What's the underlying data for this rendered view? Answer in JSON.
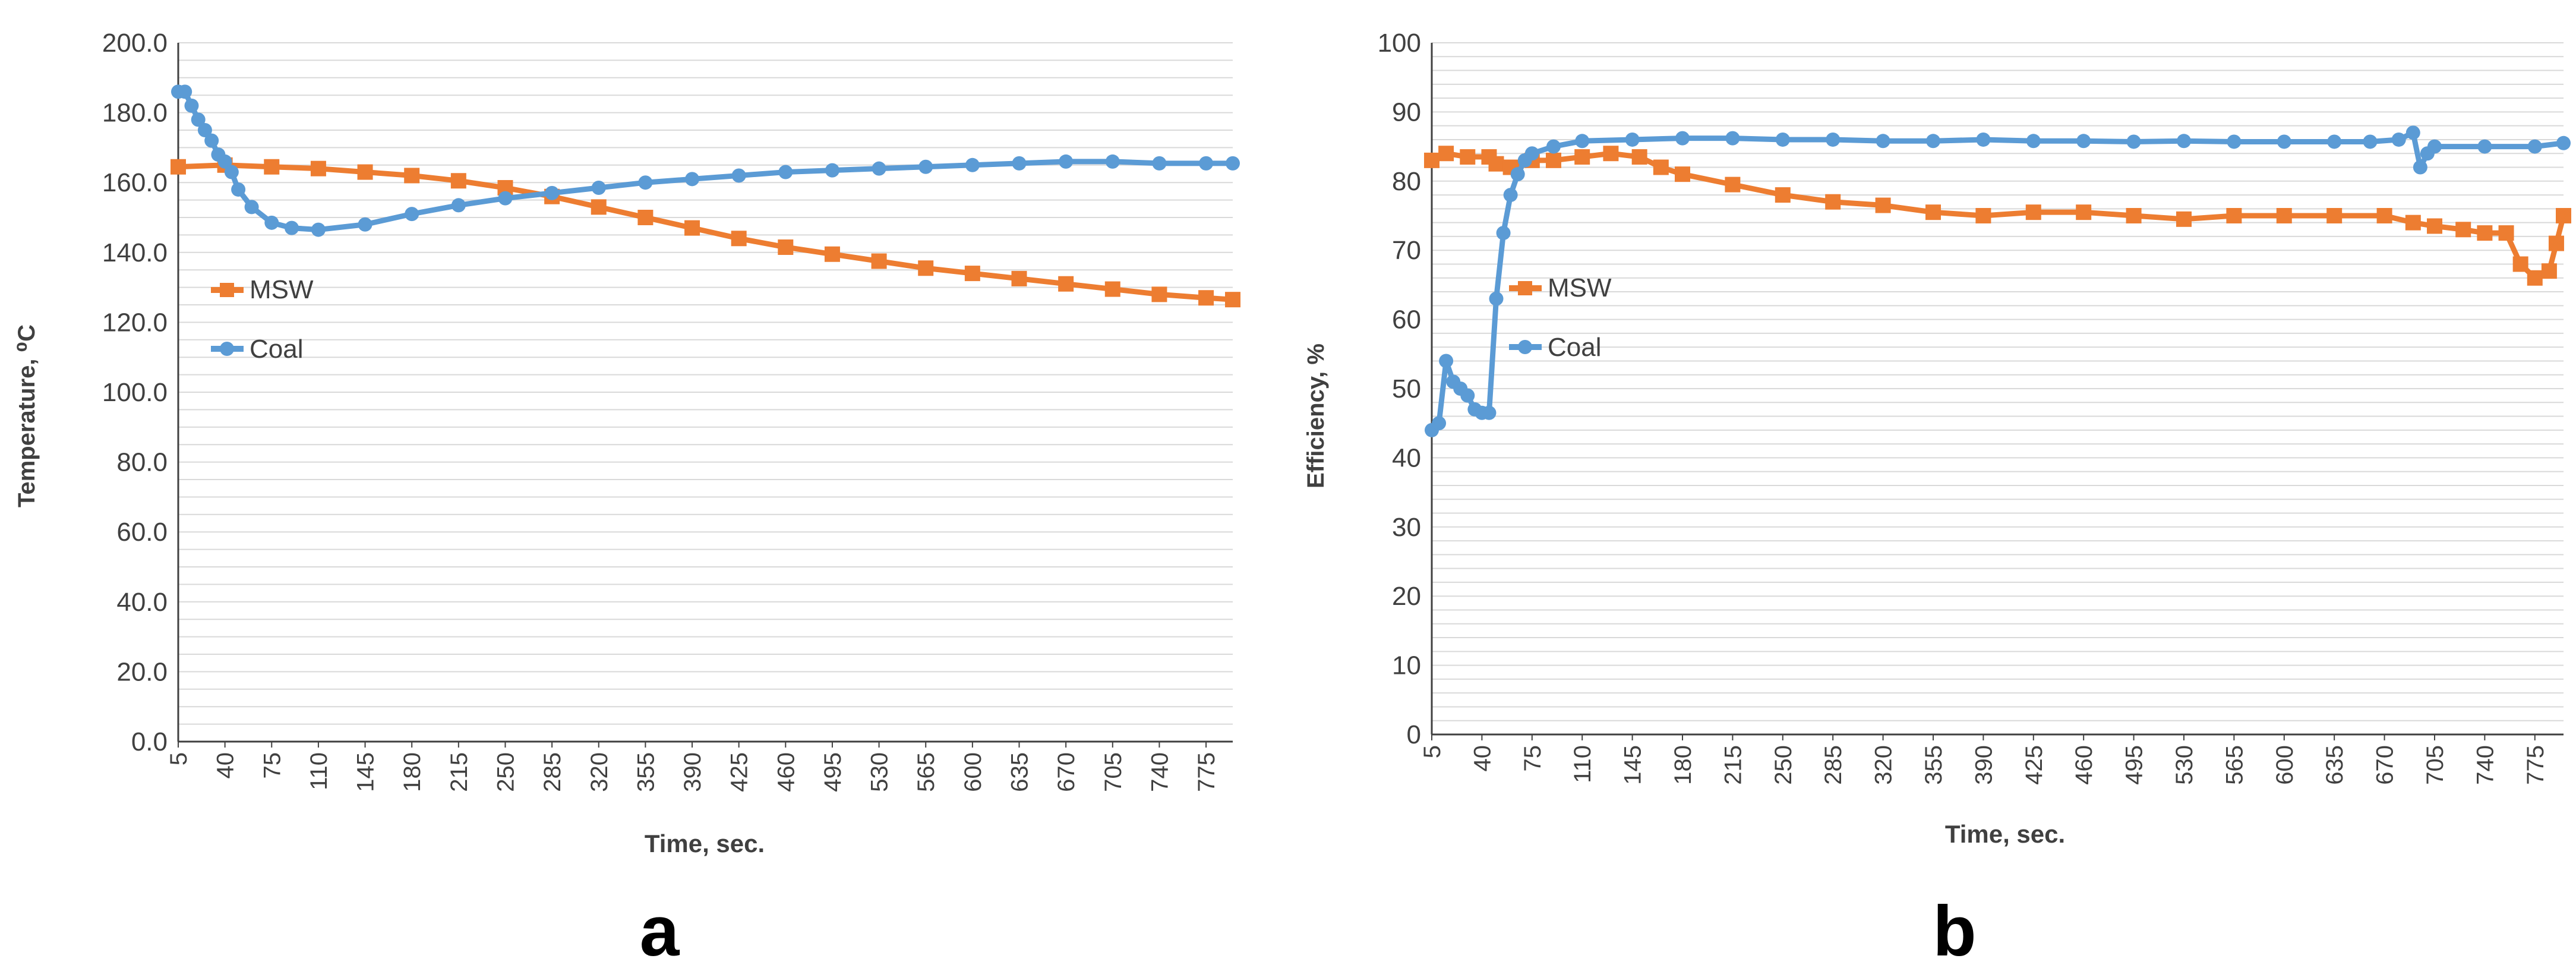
{
  "colors": {
    "msw": "#ED7D31",
    "coal": "#5B9BD5",
    "grid": "#D9D9D9",
    "axis": "#404040",
    "text": "#404040"
  },
  "chart_data": [
    {
      "panel_label": "a",
      "type": "line",
      "xlabel": "Time, sec.",
      "ylabel": "Temperature, ",
      "ylabel_unit": "⁰C",
      "ylim": [
        0,
        200
      ],
      "y_ticks": [
        "0.0",
        "20.0",
        "40.0",
        "60.0",
        "80.0",
        "100.0",
        "120.0",
        "140.0",
        "160.0",
        "180.0",
        "200.0"
      ],
      "xlim": [
        5,
        795
      ],
      "x_ticks": [
        5,
        40,
        75,
        110,
        145,
        180,
        215,
        250,
        285,
        320,
        355,
        390,
        425,
        460,
        495,
        530,
        565,
        600,
        635,
        670,
        705,
        740,
        775
      ],
      "grid": true,
      "legend": "left-middle",
      "series": [
        {
          "name": "MSW",
          "color_key": "msw",
          "marker": "square",
          "points": [
            [
              5,
              164.5
            ],
            [
              40,
              165
            ],
            [
              75,
              164.5
            ],
            [
              110,
              164
            ],
            [
              145,
              163
            ],
            [
              180,
              162
            ],
            [
              215,
              160.5
            ],
            [
              250,
              158.5
            ],
            [
              285,
              156
            ],
            [
              320,
              153
            ],
            [
              355,
              150
            ],
            [
              390,
              147
            ],
            [
              425,
              144
            ],
            [
              460,
              141.5
            ],
            [
              495,
              139.5
            ],
            [
              530,
              137.5
            ],
            [
              565,
              135.5
            ],
            [
              600,
              134
            ],
            [
              635,
              132.5
            ],
            [
              670,
              131
            ],
            [
              705,
              129.5
            ],
            [
              740,
              128
            ],
            [
              775,
              127
            ],
            [
              795,
              126.5
            ]
          ]
        },
        {
          "name": "Coal",
          "color_key": "coal",
          "marker": "circle",
          "points": [
            [
              5,
              186
            ],
            [
              10,
              186
            ],
            [
              15,
              182
            ],
            [
              20,
              178
            ],
            [
              25,
              175
            ],
            [
              30,
              172
            ],
            [
              35,
              168
            ],
            [
              40,
              166
            ],
            [
              45,
              163
            ],
            [
              50,
              158
            ],
            [
              60,
              153
            ],
            [
              75,
              148.5
            ],
            [
              90,
              147
            ],
            [
              110,
              146.5
            ],
            [
              145,
              148
            ],
            [
              180,
              151
            ],
            [
              215,
              153.5
            ],
            [
              250,
              155.5
            ],
            [
              285,
              157
            ],
            [
              320,
              158.5
            ],
            [
              355,
              160
            ],
            [
              390,
              161
            ],
            [
              425,
              162
            ],
            [
              460,
              163
            ],
            [
              495,
              163.5
            ],
            [
              530,
              164
            ],
            [
              565,
              164.5
            ],
            [
              600,
              165
            ],
            [
              635,
              165.5
            ],
            [
              670,
              166
            ],
            [
              705,
              166
            ],
            [
              740,
              165.5
            ],
            [
              775,
              165.5
            ],
            [
              795,
              165.5
            ]
          ]
        }
      ]
    },
    {
      "panel_label": "b",
      "type": "line",
      "xlabel": "Time, sec.",
      "ylabel": "Efficiency, %",
      "ylim": [
        0,
        100
      ],
      "y_ticks": [
        "0",
        "10",
        "20",
        "30",
        "40",
        "50",
        "60",
        "70",
        "80",
        "90",
        "100"
      ],
      "xlim": [
        5,
        795
      ],
      "x_ticks": [
        5,
        40,
        75,
        110,
        145,
        180,
        215,
        250,
        285,
        320,
        355,
        390,
        425,
        460,
        495,
        530,
        565,
        600,
        635,
        670,
        705,
        740,
        775
      ],
      "grid": true,
      "legend": "left-middle",
      "series": [
        {
          "name": "MSW",
          "color_key": "msw",
          "marker": "square",
          "points": [
            [
              5,
              83
            ],
            [
              15,
              84
            ],
            [
              30,
              83.5
            ],
            [
              45,
              83.5
            ],
            [
              50,
              82.5
            ],
            [
              60,
              82
            ],
            [
              75,
              83
            ],
            [
              90,
              83
            ],
            [
              110,
              83.5
            ],
            [
              130,
              84
            ],
            [
              150,
              83.5
            ],
            [
              165,
              82
            ],
            [
              180,
              81
            ],
            [
              215,
              79.5
            ],
            [
              250,
              78
            ],
            [
              285,
              77
            ],
            [
              320,
              76.5
            ],
            [
              355,
              75.5
            ],
            [
              390,
              75
            ],
            [
              425,
              75.5
            ],
            [
              460,
              75.5
            ],
            [
              495,
              75
            ],
            [
              530,
              74.5
            ],
            [
              565,
              75
            ],
            [
              600,
              75
            ],
            [
              635,
              75
            ],
            [
              670,
              75
            ],
            [
              690,
              74
            ],
            [
              705,
              73.5
            ],
            [
              725,
              73
            ],
            [
              740,
              72.5
            ],
            [
              755,
              72.5
            ],
            [
              765,
              68
            ],
            [
              775,
              66
            ],
            [
              785,
              67
            ],
            [
              790,
              71
            ],
            [
              795,
              75
            ]
          ]
        },
        {
          "name": "Coal",
          "color_key": "coal",
          "marker": "circle",
          "points": [
            [
              5,
              44
            ],
            [
              10,
              45
            ],
            [
              15,
              54
            ],
            [
              20,
              51
            ],
            [
              25,
              50
            ],
            [
              30,
              49
            ],
            [
              35,
              47
            ],
            [
              40,
              46.5
            ],
            [
              45,
              46.5
            ],
            [
              50,
              63
            ],
            [
              55,
              72.5
            ],
            [
              60,
              78
            ],
            [
              65,
              81
            ],
            [
              70,
              83
            ],
            [
              75,
              84
            ],
            [
              90,
              85
            ],
            [
              110,
              85.8
            ],
            [
              145,
              86
            ],
            [
              180,
              86.2
            ],
            [
              215,
              86.2
            ],
            [
              250,
              86
            ],
            [
              285,
              86
            ],
            [
              320,
              85.8
            ],
            [
              355,
              85.8
            ],
            [
              390,
              86
            ],
            [
              425,
              85.8
            ],
            [
              460,
              85.8
            ],
            [
              495,
              85.7
            ],
            [
              530,
              85.8
            ],
            [
              565,
              85.7
            ],
            [
              600,
              85.7
            ],
            [
              635,
              85.7
            ],
            [
              660,
              85.7
            ],
            [
              680,
              86
            ],
            [
              690,
              87
            ],
            [
              695,
              82
            ],
            [
              700,
              84
            ],
            [
              705,
              85
            ],
            [
              740,
              85
            ],
            [
              775,
              85
            ],
            [
              795,
              85.5
            ]
          ]
        }
      ]
    }
  ]
}
